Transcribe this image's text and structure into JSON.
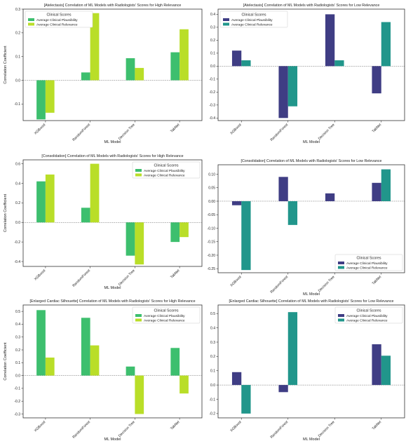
{
  "colors": {
    "high_plausibility": "#3dbf6e",
    "high_relevance": "#b9de28",
    "low_plausibility": "#3f3d84",
    "low_relevance": "#21968b"
  },
  "legend_title": "Clinical Scores",
  "chart_data": [
    {
      "type": "bar",
      "title": "[Atelectasis] Correlation of ML Models with Radiologists' Scores for High Relevance",
      "xlabel": "ML Model",
      "ylabel": "Correlation Coefficient",
      "categories": [
        "XGBoost",
        "RandomForest",
        "Decision Tree",
        "TabNet"
      ],
      "ylim": [
        -0.17,
        0.3
      ],
      "yticks": [
        -0.1,
        0.0,
        0.1,
        0.2,
        0.3
      ],
      "legend_position": "top-left",
      "palette": "high",
      "series": [
        {
          "name": "Average Clinical Plausibility",
          "values": [
            -0.165,
            0.033,
            0.093,
            0.118
          ]
        },
        {
          "name": "Average Clinical Relevance",
          "values": [
            -0.137,
            0.283,
            0.052,
            0.215
          ]
        }
      ]
    },
    {
      "type": "bar",
      "title": "[Atelectasis] Correlation of ML Models with Radiologists' Scores for Low Relevance",
      "xlabel": "ML Model",
      "ylabel": "",
      "categories": [
        "XGBoost",
        "RandomForest",
        "Decision Tree",
        "TabNet"
      ],
      "ylim": [
        -0.42,
        0.44
      ],
      "yticks": [
        -0.4,
        -0.3,
        -0.2,
        -0.1,
        0.0,
        0.1,
        0.2,
        0.3,
        0.4
      ],
      "legend_position": "top-left",
      "palette": "low",
      "series": [
        {
          "name": "Average Clinical Plausibility",
          "values": [
            0.12,
            -0.4,
            0.4,
            -0.21
          ]
        },
        {
          "name": "Average Clinical Relevance",
          "values": [
            0.045,
            -0.31,
            0.045,
            0.34
          ]
        }
      ]
    },
    {
      "type": "bar",
      "title": "[Consolidation] Correlation of ML Models with Radiologists' Scores for High Relevance",
      "xlabel": "ML Model",
      "ylabel": "Correlation Coefficient",
      "categories": [
        "XGBoost",
        "RandomForest",
        "Decision Tree",
        "TabNet"
      ],
      "ylim": [
        -0.45,
        0.64
      ],
      "yticks": [
        -0.4,
        -0.2,
        0.0,
        0.2,
        0.4,
        0.6
      ],
      "legend_position": "top-right",
      "palette": "high",
      "series": [
        {
          "name": "Average Clinical Plausibility",
          "values": [
            0.42,
            0.15,
            -0.34,
            -0.2
          ]
        },
        {
          "name": "Average Clinical Relevance",
          "values": [
            0.49,
            0.6,
            -0.43,
            -0.15
          ]
        }
      ]
    },
    {
      "type": "bar",
      "title": "[Consolidation] Correlation of ML Models with Radiologists' Scores for Low Relevance",
      "xlabel": "ML Model",
      "ylabel": "",
      "categories": [
        "XGBoost",
        "RandomForest",
        "Decision Tree",
        "TabNet"
      ],
      "ylim": [
        -0.265,
        0.135
      ],
      "yticks": [
        -0.25,
        -0.2,
        -0.15,
        -0.1,
        -0.05,
        0.0,
        0.05,
        0.1
      ],
      "legend_position": "bottom-right",
      "palette": "low",
      "series": [
        {
          "name": "Average Clinical Plausibility",
          "values": [
            -0.015,
            0.09,
            0.029,
            0.068
          ]
        },
        {
          "name": "Average Clinical Relevance",
          "values": [
            -0.255,
            -0.088,
            0.0,
            0.118
          ]
        }
      ]
    },
    {
      "type": "bar",
      "title": "[Enlarged Cardiac Silhouette] Correlation of ML Models with Radiologists' Scores for High Relevance",
      "xlabel": "ML Model",
      "ylabel": "Correlation Coefficient",
      "categories": [
        "XGBoost",
        "RandomForest",
        "Decision Tree",
        "TabNet"
      ],
      "ylim": [
        -0.33,
        0.55
      ],
      "yticks": [
        -0.3,
        -0.2,
        -0.1,
        0.0,
        0.1,
        0.2,
        0.3,
        0.4,
        0.5
      ],
      "legend_position": "top-right",
      "palette": "high",
      "series": [
        {
          "name": "Average Clinical Plausibility",
          "values": [
            0.51,
            0.45,
            0.07,
            0.215
          ]
        },
        {
          "name": "Average Clinical Relevance",
          "values": [
            0.14,
            0.235,
            -0.3,
            -0.14
          ]
        }
      ]
    },
    {
      "type": "bar",
      "title": "[Enlarged Cardiac Silhouette] Correlation of ML Models with Radiologists' Scores for Low Relevance",
      "xlabel": "ML Model",
      "ylabel": "",
      "categories": [
        "XGBoost",
        "RandomForest",
        "Decision Tree",
        "TabNet"
      ],
      "ylim": [
        -0.23,
        0.56
      ],
      "yticks": [
        -0.2,
        -0.1,
        0.0,
        0.1,
        0.2,
        0.3,
        0.4,
        0.5
      ],
      "legend_position": "top-right",
      "palette": "low",
      "series": [
        {
          "name": "Average Clinical Plausibility",
          "values": [
            0.09,
            -0.05,
            0.0,
            0.285
          ]
        },
        {
          "name": "Average Clinical Relevance",
          "values": [
            -0.2,
            0.51,
            0.0,
            0.205
          ]
        }
      ]
    }
  ]
}
